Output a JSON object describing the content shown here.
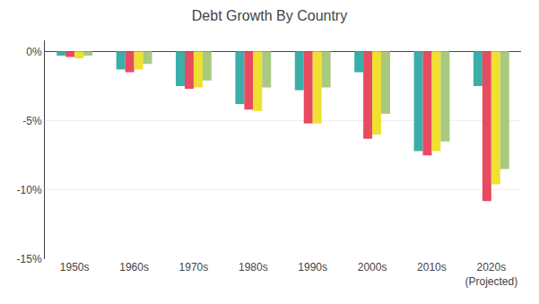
{
  "chart_data": {
    "type": "bar",
    "title": "Debt Growth By Country",
    "categories": [
      "1950s",
      "1960s",
      "1970s",
      "1980s",
      "1990s",
      "2000s",
      "2010s",
      "2020s\n(Projected)"
    ],
    "series": [
      {
        "color": "#3aafa9",
        "values": [
          -0.3,
          -1.3,
          -2.5,
          -3.8,
          -2.8,
          -1.5,
          -7.2,
          -2.5
        ]
      },
      {
        "color": "#e84a5f",
        "values": [
          -0.4,
          -1.5,
          -2.7,
          -4.2,
          -5.2,
          -6.3,
          -7.5,
          -10.8
        ]
      },
      {
        "color": "#f0e030",
        "values": [
          -0.5,
          -1.3,
          -2.6,
          -4.3,
          -5.2,
          -6.0,
          -7.2,
          -9.6
        ]
      },
      {
        "color": "#a8c97f",
        "values": [
          -0.3,
          -0.9,
          -2.1,
          -2.6,
          -2.6,
          -4.5,
          -6.5,
          -8.5
        ]
      }
    ],
    "ylim": [
      -15,
      0.8
    ],
    "yticks": [
      {
        "value": 0,
        "label": "0%"
      },
      {
        "value": -5,
        "label": "-5%"
      },
      {
        "value": -10,
        "label": "-10%"
      },
      {
        "value": -15,
        "label": "-15%"
      }
    ],
    "grid": true
  }
}
